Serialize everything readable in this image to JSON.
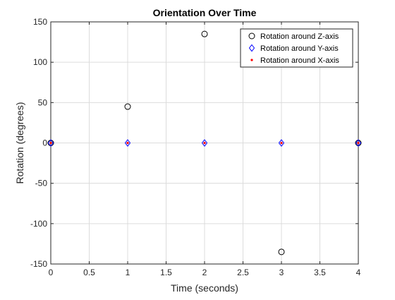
{
  "chart_data": {
    "type": "scatter",
    "title": "Orientation Over Time",
    "xlabel": "Time (seconds)",
    "ylabel": "Rotation (degrees)",
    "xlim": [
      0,
      4
    ],
    "ylim": [
      -150,
      150
    ],
    "xticks": [
      0,
      0.5,
      1,
      1.5,
      2,
      2.5,
      3,
      3.5,
      4
    ],
    "xtick_labels": [
      "0",
      "0.5",
      "1",
      "1.5",
      "2",
      "2.5",
      "3",
      "3.5",
      "4"
    ],
    "yticks": [
      -150,
      -100,
      -50,
      0,
      50,
      100,
      150
    ],
    "ytick_labels": [
      "-150",
      "-100",
      "-50",
      "0",
      "50",
      "100",
      "150"
    ],
    "grid": true,
    "legend_position": "top-right",
    "series": [
      {
        "name": "Rotation around Z-axis",
        "marker": "circle",
        "color": "#000000",
        "x": [
          0,
          1,
          2,
          3,
          4
        ],
        "y": [
          0,
          45,
          135,
          -135,
          0
        ]
      },
      {
        "name": "Rotation around Y-axis",
        "marker": "diamond",
        "color": "#0000ff",
        "x": [
          0,
          1,
          2,
          3,
          4
        ],
        "y": [
          0,
          0,
          0,
          0,
          0
        ]
      },
      {
        "name": "Rotation around X-axis",
        "marker": "dot",
        "color": "#ff0000",
        "x": [
          0,
          1,
          2,
          3,
          4
        ],
        "y": [
          0,
          0,
          0,
          0,
          0
        ]
      }
    ]
  }
}
